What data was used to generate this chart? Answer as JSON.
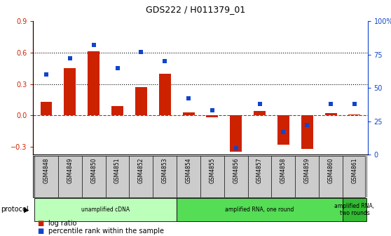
{
  "title": "GDS222 / H011379_01",
  "samples": [
    "GSM4848",
    "GSM4849",
    "GSM4850",
    "GSM4851",
    "GSM4852",
    "GSM4853",
    "GSM4854",
    "GSM4855",
    "GSM4856",
    "GSM4857",
    "GSM4858",
    "GSM4859",
    "GSM4860",
    "GSM4861"
  ],
  "log_ratio": [
    0.13,
    0.45,
    0.61,
    0.09,
    0.27,
    0.4,
    0.03,
    -0.02,
    -0.35,
    0.04,
    -0.28,
    -0.32,
    0.02,
    0.01
  ],
  "percentile": [
    0.6,
    0.72,
    0.82,
    0.65,
    0.77,
    0.7,
    0.42,
    0.33,
    0.05,
    0.38,
    0.17,
    0.22,
    0.38,
    0.38
  ],
  "bar_color": "#cc2200",
  "dot_color": "#1144cc",
  "ylim_left": [
    -0.375,
    0.9
  ],
  "ylim_right": [
    0.0,
    1.0
  ],
  "yticks_left": [
    -0.3,
    0.0,
    0.3,
    0.6,
    0.9
  ],
  "yticks_right": [
    0.0,
    0.25,
    0.5,
    0.75,
    1.0
  ],
  "yticklabels_right": [
    "0",
    "25",
    "50",
    "75",
    "100%"
  ],
  "hlines": [
    0.3,
    0.6
  ],
  "protocols": [
    {
      "label": "unamplified cDNA",
      "start": 0,
      "end": 5,
      "color": "#bbffbb"
    },
    {
      "label": "amplified RNA, one round",
      "start": 6,
      "end": 12,
      "color": "#55dd55"
    },
    {
      "label": "amplified RNA,\ntwo rounds",
      "start": 13,
      "end": 13,
      "color": "#33bb33"
    }
  ],
  "protocol_label": "protocol",
  "legend_log": "log ratio",
  "legend_pct": "percentile rank within the sample",
  "background_color": "#ffffff"
}
